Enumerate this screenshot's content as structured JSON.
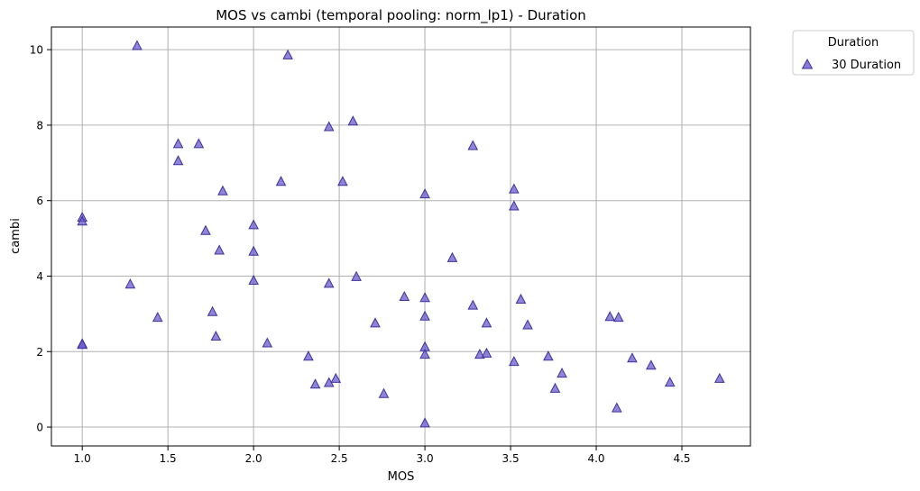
{
  "chart_data": {
    "type": "scatter",
    "title": "MOS vs cambi (temporal pooling: norm_lp1) - Duration",
    "xlabel": "MOS",
    "ylabel": "cambi",
    "xlim": [
      0.82,
      4.9
    ],
    "ylim": [
      -0.5,
      10.6
    ],
    "xticks": [
      "1.0",
      "1.5",
      "2.0",
      "2.5",
      "3.0",
      "3.5",
      "4.0",
      "4.5"
    ],
    "xtick_values": [
      1.0,
      1.5,
      2.0,
      2.5,
      3.0,
      3.5,
      4.0,
      4.5
    ],
    "yticks": [
      "0",
      "2",
      "4",
      "6",
      "8",
      "10"
    ],
    "ytick_values": [
      0,
      2,
      4,
      6,
      8,
      10
    ],
    "grid": true,
    "legend": {
      "title": "Duration",
      "placement": "outside-top-right"
    },
    "series": [
      {
        "name": "30 Duration",
        "marker": "triangle",
        "color": "#6a5acd",
        "edge_color": "#3d3399",
        "points": [
          [
            1.32,
            10.1
          ],
          [
            2.2,
            9.85
          ],
          [
            2.58,
            8.1
          ],
          [
            2.44,
            7.95
          ],
          [
            3.28,
            7.45
          ],
          [
            1.56,
            7.5
          ],
          [
            1.68,
            7.5
          ],
          [
            1.56,
            7.05
          ],
          [
            2.16,
            6.5
          ],
          [
            2.52,
            6.5
          ],
          [
            1.82,
            6.25
          ],
          [
            3.52,
            6.3
          ],
          [
            3.0,
            6.17
          ],
          [
            3.52,
            5.85
          ],
          [
            1.0,
            5.55
          ],
          [
            1.0,
            5.45
          ],
          [
            2.0,
            5.35
          ],
          [
            1.72,
            5.2
          ],
          [
            1.8,
            4.68
          ],
          [
            2.0,
            4.65
          ],
          [
            3.16,
            4.48
          ],
          [
            2.6,
            3.98
          ],
          [
            2.0,
            3.88
          ],
          [
            2.44,
            3.8
          ],
          [
            1.28,
            3.78
          ],
          [
            2.88,
            3.45
          ],
          [
            3.0,
            3.42
          ],
          [
            3.56,
            3.38
          ],
          [
            3.28,
            3.22
          ],
          [
            1.76,
            3.05
          ],
          [
            3.0,
            2.93
          ],
          [
            1.44,
            2.9
          ],
          [
            4.08,
            2.92
          ],
          [
            4.13,
            2.9
          ],
          [
            2.71,
            2.75
          ],
          [
            3.36,
            2.75
          ],
          [
            3.6,
            2.7
          ],
          [
            1.78,
            2.4
          ],
          [
            2.08,
            2.22
          ],
          [
            1.0,
            2.2
          ],
          [
            1.0,
            2.18
          ],
          [
            3.0,
            2.12
          ],
          [
            3.36,
            1.95
          ],
          [
            3.32,
            1.92
          ],
          [
            3.0,
            1.92
          ],
          [
            2.32,
            1.87
          ],
          [
            3.72,
            1.87
          ],
          [
            4.21,
            1.82
          ],
          [
            3.52,
            1.73
          ],
          [
            4.32,
            1.63
          ],
          [
            3.8,
            1.42
          ],
          [
            2.48,
            1.28
          ],
          [
            4.72,
            1.28
          ],
          [
            4.43,
            1.18
          ],
          [
            2.44,
            1.17
          ],
          [
            2.36,
            1.13
          ],
          [
            3.76,
            1.02
          ],
          [
            2.76,
            0.88
          ],
          [
            4.12,
            0.5
          ],
          [
            3.0,
            0.1
          ]
        ]
      }
    ]
  }
}
